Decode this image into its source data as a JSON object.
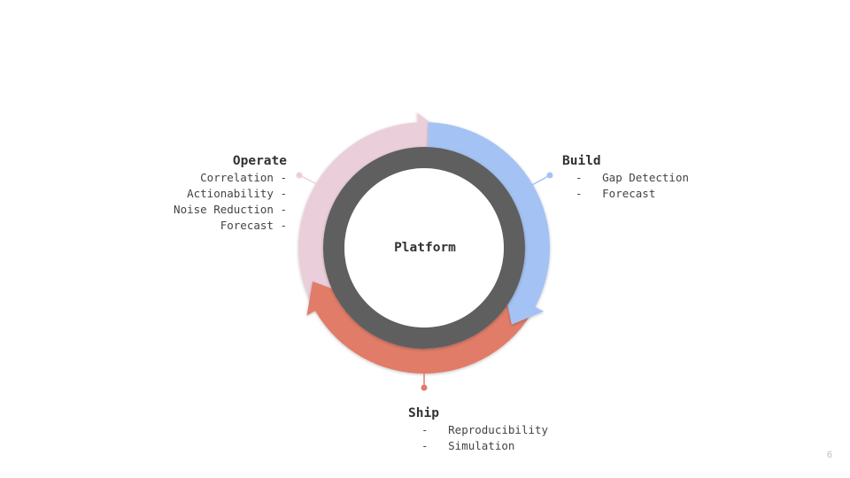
{
  "center": {
    "label": "Platform"
  },
  "stages": {
    "operate": {
      "title": "Operate",
      "items": [
        "Correlation",
        "Actionability",
        "Noise Reduction",
        "Forecast"
      ],
      "color": "#eacfdb"
    },
    "build": {
      "title": "Build",
      "items": [
        "Gap Detection",
        "Forecast"
      ],
      "color": "#a4c2f4"
    },
    "ship": {
      "title": "Ship",
      "items": [
        "Reproducibility",
        "Simulation"
      ],
      "color": "#e07b67"
    }
  },
  "ring_color": "#5f5f5f",
  "page_number": "6"
}
